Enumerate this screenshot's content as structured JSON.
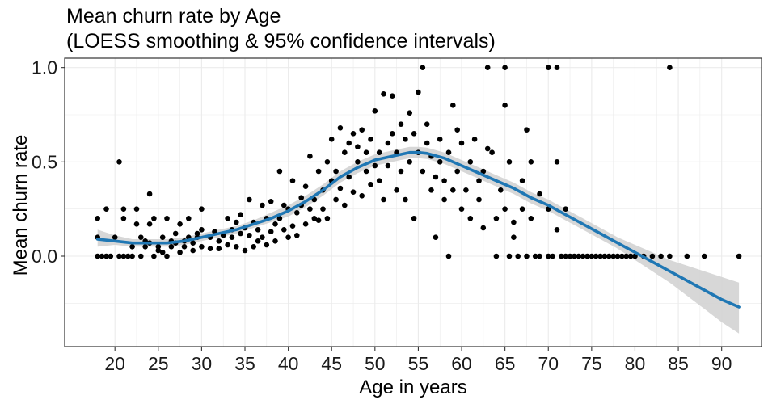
{
  "chart_data": {
    "type": "scatter",
    "title": [
      "Mean churn rate by Age",
      "(LOESS smoothing & 95% confidence intervals)"
    ],
    "xlabel": "Age in years",
    "ylabel": "Mean churn rate",
    "xlim": [
      14.2,
      94.6
    ],
    "ylim": [
      -0.48,
      1.05
    ],
    "x_ticks": [
      20,
      25,
      30,
      35,
      40,
      45,
      50,
      55,
      60,
      65,
      70,
      75,
      80,
      85,
      90
    ],
    "x_tick_labels": [
      "20",
      "25",
      "30",
      "35",
      "40",
      "45",
      "50",
      "55",
      "60",
      "65",
      "70",
      "75",
      "80",
      "85",
      "90"
    ],
    "y_ticks": [
      0.0,
      0.5,
      1.0
    ],
    "y_tick_labels": [
      "0.0",
      "0.5",
      "1.0"
    ],
    "grid": true,
    "colors": {
      "points": "#000000",
      "smooth": "#1f77b4",
      "band": "#d3d3d3",
      "panel_border": "#333333",
      "grid": "#ebebeb"
    },
    "points": [
      [
        18,
        0.2
      ],
      [
        18,
        0.0
      ],
      [
        18,
        0.1
      ],
      [
        18.5,
        0.0
      ],
      [
        19,
        0.25
      ],
      [
        19,
        0.0
      ],
      [
        19.5,
        0.0
      ],
      [
        20,
        0.1
      ],
      [
        20.5,
        0.0
      ],
      [
        20.5,
        0.5
      ],
      [
        21,
        0.25
      ],
      [
        21,
        0.0
      ],
      [
        21,
        0.2
      ],
      [
        21.5,
        0.0
      ],
      [
        22,
        0.05
      ],
      [
        22,
        0.0
      ],
      [
        22.5,
        0.25
      ],
      [
        22.5,
        0.17
      ],
      [
        23,
        0.0
      ],
      [
        23,
        0.1
      ],
      [
        23.5,
        0.05
      ],
      [
        23.5,
        0.08
      ],
      [
        24,
        0.33
      ],
      [
        24,
        0.07
      ],
      [
        24,
        0.17
      ],
      [
        24.5,
        0.2
      ],
      [
        24.5,
        0.0
      ],
      [
        25,
        0.05
      ],
      [
        25,
        0.03
      ],
      [
        25.5,
        0.1
      ],
      [
        25.5,
        0.02
      ],
      [
        26,
        0.2
      ],
      [
        26,
        0.0
      ],
      [
        26.5,
        0.05
      ],
      [
        26.5,
        0.08
      ],
      [
        27,
        0.12
      ],
      [
        27,
        0.07
      ],
      [
        27.5,
        0.17
      ],
      [
        27.5,
        0.02
      ],
      [
        28,
        0.08
      ],
      [
        28,
        0.05
      ],
      [
        28.5,
        0.2
      ],
      [
        28.5,
        0.1
      ],
      [
        29,
        0.03
      ],
      [
        29,
        0.07
      ],
      [
        29.5,
        0.1
      ],
      [
        29.5,
        0.12
      ],
      [
        30,
        0.14
      ],
      [
        30,
        0.05
      ],
      [
        30,
        0.25
      ],
      [
        31,
        0.1
      ],
      [
        31,
        0.04
      ],
      [
        31.5,
        0.13
      ],
      [
        32,
        0.08
      ],
      [
        32,
        0.04
      ],
      [
        32.5,
        0.11
      ],
      [
        33,
        0.2
      ],
      [
        33,
        0.06
      ],
      [
        33.5,
        0.1
      ],
      [
        33.5,
        0.14
      ],
      [
        34,
        0.18
      ],
      [
        34,
        0.05
      ],
      [
        34.5,
        0.22
      ],
      [
        34.5,
        0.12
      ],
      [
        35,
        0.03
      ],
      [
        35,
        0.15
      ],
      [
        35.5,
        0.11
      ],
      [
        35.5,
        0.3
      ],
      [
        36,
        0.05
      ],
      [
        36,
        0.18
      ],
      [
        36.5,
        0.08
      ],
      [
        36.5,
        0.14
      ],
      [
        37,
        0.27
      ],
      [
        37,
        0.1
      ],
      [
        37.5,
        0.2
      ],
      [
        37.5,
        0.06
      ],
      [
        38,
        0.13
      ],
      [
        38,
        0.29
      ],
      [
        38.5,
        0.17
      ],
      [
        38.5,
        0.08
      ],
      [
        39,
        0.2
      ],
      [
        39,
        0.45
      ],
      [
        39.5,
        0.27
      ],
      [
        39.5,
        0.14
      ],
      [
        40,
        0.25
      ],
      [
        40,
        0.1
      ],
      [
        40.5,
        0.16
      ],
      [
        40.5,
        0.4
      ],
      [
        41,
        0.23
      ],
      [
        41,
        0.11
      ],
      [
        41.5,
        0.27
      ],
      [
        41.5,
        0.31
      ],
      [
        42,
        0.17
      ],
      [
        42,
        0.37
      ],
      [
        42.5,
        0.25
      ],
      [
        42.5,
        0.53
      ],
      [
        43,
        0.2
      ],
      [
        43,
        0.3
      ],
      [
        43.5,
        0.45
      ],
      [
        43.5,
        0.19
      ],
      [
        44,
        0.35
      ],
      [
        44,
        0.25
      ],
      [
        44.5,
        0.2
      ],
      [
        44.5,
        0.5
      ],
      [
        45,
        0.4
      ],
      [
        45,
        0.62
      ],
      [
        45.5,
        0.3
      ],
      [
        45.5,
        0.45
      ],
      [
        46,
        0.68
      ],
      [
        46,
        0.36
      ],
      [
        46.5,
        0.55
      ],
      [
        46.5,
        0.27
      ],
      [
        47,
        0.42
      ],
      [
        47,
        0.6
      ],
      [
        47.5,
        0.34
      ],
      [
        47.5,
        0.65
      ],
      [
        48,
        0.5
      ],
      [
        48,
        0.58
      ],
      [
        48.5,
        0.32
      ],
      [
        48.5,
        0.67
      ],
      [
        49,
        0.45
      ],
      [
        49,
        0.55
      ],
      [
        49.5,
        0.38
      ],
      [
        49.5,
        0.62
      ],
      [
        50,
        0.48
      ],
      [
        50,
        0.77
      ],
      [
        50.5,
        0.4
      ],
      [
        50.5,
        0.55
      ],
      [
        51,
        0.86
      ],
      [
        51,
        0.3
      ],
      [
        51.5,
        0.6
      ],
      [
        51.5,
        0.48
      ],
      [
        52,
        0.85
      ],
      [
        52,
        0.65
      ],
      [
        52.5,
        0.35
      ],
      [
        52.5,
        0.55
      ],
      [
        53,
        0.7
      ],
      [
        53,
        0.45
      ],
      [
        53.5,
        0.62
      ],
      [
        53.5,
        0.3
      ],
      [
        54,
        0.76
      ],
      [
        54,
        0.5
      ],
      [
        54.5,
        0.2
      ],
      [
        54.5,
        0.65
      ],
      [
        55,
        0.87
      ],
      [
        55,
        0.55
      ],
      [
        55.5,
        1.0
      ],
      [
        55.5,
        0.45
      ],
      [
        56,
        0.7
      ],
      [
        56,
        0.6
      ],
      [
        56.5,
        0.35
      ],
      [
        56.5,
        0.53
      ],
      [
        57,
        0.1
      ],
      [
        57,
        0.42
      ],
      [
        57.5,
        0.5
      ],
      [
        57.5,
        0.62
      ],
      [
        58,
        0.4
      ],
      [
        58,
        0.3
      ],
      [
        58.5,
        0.0
      ],
      [
        58.5,
        0.55
      ],
      [
        59,
        0.8
      ],
      [
        59,
        0.35
      ],
      [
        59.5,
        0.45
      ],
      [
        59.5,
        0.67
      ],
      [
        60,
        0.25
      ],
      [
        60,
        0.6
      ],
      [
        60.5,
        0.35
      ],
      [
        61,
        0.5
      ],
      [
        61,
        0.2
      ],
      [
        61.5,
        0.62
      ],
      [
        62,
        0.3
      ],
      [
        62,
        0.4
      ],
      [
        62.5,
        0.15
      ],
      [
        62.5,
        0.45
      ],
      [
        63,
        1.0
      ],
      [
        63,
        0.57
      ],
      [
        63.5,
        0.55
      ],
      [
        64,
        0.0
      ],
      [
        64,
        0.2
      ],
      [
        64.5,
        0.35
      ],
      [
        65,
        0.8
      ],
      [
        65,
        1.0
      ],
      [
        65,
        0.25
      ],
      [
        65.5,
        0.0
      ],
      [
        65.5,
        0.5
      ],
      [
        66,
        0.18
      ],
      [
        66,
        0.1
      ],
      [
        66.5,
        0.0
      ],
      [
        67,
        0.4
      ],
      [
        67,
        0.25
      ],
      [
        67.5,
        0.67
      ],
      [
        67.5,
        0.0
      ],
      [
        68,
        0.5
      ],
      [
        68,
        0.2
      ],
      [
        68.5,
        0.0
      ],
      [
        69,
        0.33
      ],
      [
        69,
        0.0
      ],
      [
        70,
        1.0
      ],
      [
        70,
        0.0
      ],
      [
        70,
        0.25
      ],
      [
        70.5,
        0.0
      ],
      [
        71,
        1.0
      ],
      [
        71,
        0.5
      ],
      [
        71,
        0.14
      ],
      [
        71.5,
        0.0
      ],
      [
        72,
        0.25
      ],
      [
        72,
        0.0
      ],
      [
        72.5,
        0.0
      ],
      [
        73,
        0.0
      ],
      [
        73.5,
        0.0
      ],
      [
        74,
        0.0
      ],
      [
        74.5,
        0.0
      ],
      [
        75,
        0.0
      ],
      [
        75.5,
        0.0
      ],
      [
        76,
        0.0
      ],
      [
        76.5,
        0.0
      ],
      [
        77,
        0.0
      ],
      [
        77.5,
        0.0
      ],
      [
        78,
        0.0
      ],
      [
        78.5,
        0.0
      ],
      [
        79,
        0.0
      ],
      [
        79.5,
        0.0
      ],
      [
        80,
        0.0
      ],
      [
        81,
        0.0
      ],
      [
        82,
        0.0
      ],
      [
        83,
        0.0
      ],
      [
        84,
        1.0
      ],
      [
        84,
        0.0
      ],
      [
        86,
        0.0
      ],
      [
        88,
        0.0
      ],
      [
        92,
        0.0
      ]
    ],
    "smooth": {
      "x": [
        18,
        20,
        22,
        24,
        26,
        28,
        30,
        32,
        34,
        36,
        38,
        40,
        42,
        44,
        46,
        48,
        50,
        52,
        54,
        55,
        56,
        58,
        60,
        62,
        64,
        66,
        68,
        70,
        72,
        74,
        76,
        78,
        80,
        82,
        84,
        86,
        88,
        90,
        92
      ],
      "y": [
        0.09,
        0.08,
        0.07,
        0.07,
        0.07,
        0.08,
        0.1,
        0.12,
        0.14,
        0.17,
        0.2,
        0.24,
        0.29,
        0.35,
        0.42,
        0.47,
        0.51,
        0.53,
        0.55,
        0.55,
        0.545,
        0.52,
        0.48,
        0.44,
        0.4,
        0.36,
        0.31,
        0.27,
        0.22,
        0.17,
        0.12,
        0.07,
        0.02,
        -0.03,
        -0.08,
        -0.13,
        -0.18,
        -0.23,
        -0.27
      ],
      "lower": [
        0.05,
        0.06,
        0.05,
        0.05,
        0.05,
        0.06,
        0.08,
        0.1,
        0.12,
        0.15,
        0.18,
        0.21,
        0.26,
        0.32,
        0.39,
        0.44,
        0.48,
        0.5,
        0.52,
        0.52,
        0.515,
        0.49,
        0.45,
        0.41,
        0.37,
        0.33,
        0.28,
        0.24,
        0.19,
        0.14,
        0.09,
        0.04,
        -0.02,
        -0.08,
        -0.14,
        -0.21,
        -0.28,
        -0.35,
        -0.41
      ],
      "upper": [
        0.14,
        0.11,
        0.09,
        0.09,
        0.09,
        0.1,
        0.12,
        0.14,
        0.16,
        0.19,
        0.23,
        0.27,
        0.32,
        0.38,
        0.45,
        0.5,
        0.54,
        0.56,
        0.58,
        0.58,
        0.575,
        0.55,
        0.51,
        0.47,
        0.43,
        0.39,
        0.34,
        0.3,
        0.25,
        0.2,
        0.15,
        0.1,
        0.06,
        0.02,
        -0.02,
        -0.05,
        -0.08,
        -0.11,
        -0.14
      ]
    }
  }
}
